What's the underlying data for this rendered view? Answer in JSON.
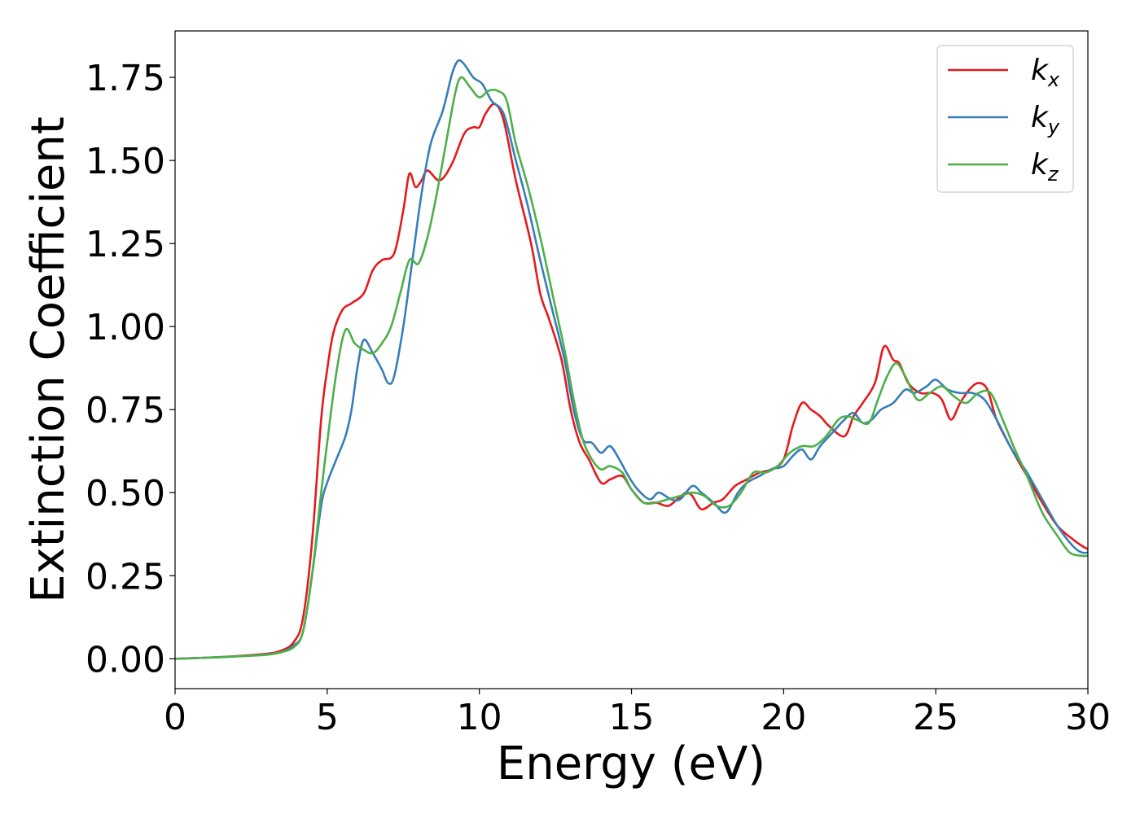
{
  "chart_data": {
    "type": "line",
    "xlabel": "Energy (eV)",
    "ylabel": "Extinction Coefficient",
    "xlim": [
      0,
      30
    ],
    "ylim": [
      -0.09,
      1.89
    ],
    "xticks": [
      0,
      5,
      10,
      15,
      20,
      25,
      30
    ],
    "xtick_labels": [
      "0",
      "5",
      "10",
      "15",
      "20",
      "25",
      "30"
    ],
    "yticks": [
      0.0,
      0.25,
      0.5,
      0.75,
      1.0,
      1.25,
      1.5,
      1.75
    ],
    "ytick_labels": [
      "0.00",
      "0.25",
      "0.50",
      "0.75",
      "1.00",
      "1.25",
      "1.50",
      "1.75"
    ],
    "grid": false,
    "legend_position": "top-right",
    "series": [
      {
        "name": "k_x",
        "label_main": "k",
        "label_sub": "x",
        "color": "#e41a1c",
        "points": [
          [
            0,
            0
          ],
          [
            1,
            0.003
          ],
          [
            2,
            0.008
          ],
          [
            3,
            0.015
          ],
          [
            3.5,
            0.025
          ],
          [
            3.9,
            0.05
          ],
          [
            4.2,
            0.12
          ],
          [
            4.5,
            0.35
          ],
          [
            4.8,
            0.72
          ],
          [
            5.0,
            0.87
          ],
          [
            5.2,
            0.98
          ],
          [
            5.5,
            1.05
          ],
          [
            5.8,
            1.07
          ],
          [
            6.2,
            1.1
          ],
          [
            6.5,
            1.17
          ],
          [
            6.8,
            1.2
          ],
          [
            7.2,
            1.22
          ],
          [
            7.5,
            1.35
          ],
          [
            7.7,
            1.46
          ],
          [
            7.9,
            1.42
          ],
          [
            8.1,
            1.44
          ],
          [
            8.3,
            1.47
          ],
          [
            8.7,
            1.44
          ],
          [
            9.1,
            1.49
          ],
          [
            9.5,
            1.58
          ],
          [
            9.8,
            1.6
          ],
          [
            10.0,
            1.6
          ],
          [
            10.2,
            1.64
          ],
          [
            10.5,
            1.67
          ],
          [
            10.8,
            1.62
          ],
          [
            11.2,
            1.44
          ],
          [
            11.7,
            1.25
          ],
          [
            12.0,
            1.1
          ],
          [
            12.3,
            1.02
          ],
          [
            12.7,
            0.9
          ],
          [
            13.0,
            0.75
          ],
          [
            13.3,
            0.65
          ],
          [
            13.6,
            0.6
          ],
          [
            14.0,
            0.53
          ],
          [
            14.3,
            0.54
          ],
          [
            14.7,
            0.55
          ],
          [
            15.0,
            0.51
          ],
          [
            15.4,
            0.47
          ],
          [
            15.8,
            0.47
          ],
          [
            16.2,
            0.46
          ],
          [
            16.5,
            0.48
          ],
          [
            16.8,
            0.5
          ],
          [
            17.0,
            0.49
          ],
          [
            17.3,
            0.45
          ],
          [
            17.7,
            0.47
          ],
          [
            18.0,
            0.48
          ],
          [
            18.4,
            0.52
          ],
          [
            18.8,
            0.54
          ],
          [
            19.2,
            0.56
          ],
          [
            19.6,
            0.57
          ],
          [
            20.0,
            0.6
          ],
          [
            20.3,
            0.7
          ],
          [
            20.6,
            0.77
          ],
          [
            20.9,
            0.75
          ],
          [
            21.2,
            0.73
          ],
          [
            21.5,
            0.7
          ],
          [
            22.0,
            0.67
          ],
          [
            22.3,
            0.73
          ],
          [
            22.6,
            0.77
          ],
          [
            23.0,
            0.83
          ],
          [
            23.3,
            0.94
          ],
          [
            23.6,
            0.9
          ],
          [
            23.8,
            0.89
          ],
          [
            24.1,
            0.83
          ],
          [
            24.5,
            0.8
          ],
          [
            24.9,
            0.8
          ],
          [
            25.2,
            0.78
          ],
          [
            25.5,
            0.72
          ],
          [
            25.8,
            0.77
          ],
          [
            26.1,
            0.81
          ],
          [
            26.4,
            0.83
          ],
          [
            26.7,
            0.81
          ],
          [
            27.0,
            0.72
          ],
          [
            27.5,
            0.63
          ],
          [
            28.0,
            0.55
          ],
          [
            28.5,
            0.47
          ],
          [
            29.0,
            0.4
          ],
          [
            29.5,
            0.36
          ],
          [
            29.8,
            0.34
          ],
          [
            30.0,
            0.33
          ]
        ]
      },
      {
        "name": "k_y",
        "label_main": "k",
        "label_sub": "y",
        "color": "#377eb8",
        "points": [
          [
            0,
            0
          ],
          [
            1,
            0.003
          ],
          [
            2,
            0.007
          ],
          [
            3,
            0.013
          ],
          [
            3.5,
            0.02
          ],
          [
            3.9,
            0.04
          ],
          [
            4.2,
            0.08
          ],
          [
            4.5,
            0.25
          ],
          [
            4.8,
            0.46
          ],
          [
            5.0,
            0.53
          ],
          [
            5.3,
            0.6
          ],
          [
            5.6,
            0.67
          ],
          [
            5.8,
            0.75
          ],
          [
            6.0,
            0.88
          ],
          [
            6.2,
            0.96
          ],
          [
            6.5,
            0.92
          ],
          [
            6.8,
            0.87
          ],
          [
            7.0,
            0.83
          ],
          [
            7.2,
            0.85
          ],
          [
            7.5,
            1.0
          ],
          [
            7.8,
            1.2
          ],
          [
            8.1,
            1.4
          ],
          [
            8.4,
            1.55
          ],
          [
            8.8,
            1.65
          ],
          [
            9.1,
            1.76
          ],
          [
            9.3,
            1.8
          ],
          [
            9.5,
            1.79
          ],
          [
            9.8,
            1.75
          ],
          [
            10.1,
            1.73
          ],
          [
            10.4,
            1.68
          ],
          [
            10.8,
            1.64
          ],
          [
            11.2,
            1.5
          ],
          [
            11.6,
            1.36
          ],
          [
            12.0,
            1.2
          ],
          [
            12.4,
            1.05
          ],
          [
            12.8,
            0.9
          ],
          [
            13.1,
            0.75
          ],
          [
            13.4,
            0.66
          ],
          [
            13.7,
            0.65
          ],
          [
            14.0,
            0.62
          ],
          [
            14.3,
            0.64
          ],
          [
            14.6,
            0.6
          ],
          [
            14.9,
            0.55
          ],
          [
            15.2,
            0.51
          ],
          [
            15.6,
            0.48
          ],
          [
            15.9,
            0.5
          ],
          [
            16.3,
            0.48
          ],
          [
            16.6,
            0.48
          ],
          [
            17.0,
            0.52
          ],
          [
            17.3,
            0.5
          ],
          [
            17.7,
            0.47
          ],
          [
            18.1,
            0.44
          ],
          [
            18.5,
            0.5
          ],
          [
            18.8,
            0.53
          ],
          [
            19.2,
            0.55
          ],
          [
            19.6,
            0.57
          ],
          [
            20.0,
            0.58
          ],
          [
            20.3,
            0.61
          ],
          [
            20.6,
            0.63
          ],
          [
            20.9,
            0.6
          ],
          [
            21.2,
            0.64
          ],
          [
            21.6,
            0.68
          ],
          [
            22.0,
            0.72
          ],
          [
            22.3,
            0.74
          ],
          [
            22.6,
            0.71
          ],
          [
            22.9,
            0.72
          ],
          [
            23.2,
            0.75
          ],
          [
            23.6,
            0.77
          ],
          [
            24.0,
            0.81
          ],
          [
            24.3,
            0.8
          ],
          [
            24.7,
            0.82
          ],
          [
            25.0,
            0.84
          ],
          [
            25.4,
            0.81
          ],
          [
            25.8,
            0.8
          ],
          [
            26.2,
            0.8
          ],
          [
            26.6,
            0.78
          ],
          [
            27.0,
            0.72
          ],
          [
            27.5,
            0.63
          ],
          [
            28.0,
            0.56
          ],
          [
            28.5,
            0.48
          ],
          [
            29.0,
            0.4
          ],
          [
            29.5,
            0.34
          ],
          [
            29.8,
            0.32
          ],
          [
            30.0,
            0.32
          ]
        ]
      },
      {
        "name": "k_z",
        "label_main": "k",
        "label_sub": "z",
        "color": "#4daf4a",
        "points": [
          [
            0,
            0
          ],
          [
            1,
            0.003
          ],
          [
            2,
            0.007
          ],
          [
            3,
            0.012
          ],
          [
            3.5,
            0.02
          ],
          [
            3.9,
            0.035
          ],
          [
            4.2,
            0.08
          ],
          [
            4.5,
            0.25
          ],
          [
            4.8,
            0.5
          ],
          [
            5.0,
            0.65
          ],
          [
            5.3,
            0.86
          ],
          [
            5.6,
            0.99
          ],
          [
            5.9,
            0.95
          ],
          [
            6.2,
            0.93
          ],
          [
            6.5,
            0.92
          ],
          [
            6.8,
            0.95
          ],
          [
            7.1,
            1.0
          ],
          [
            7.4,
            1.1
          ],
          [
            7.7,
            1.2
          ],
          [
            8.0,
            1.19
          ],
          [
            8.3,
            1.27
          ],
          [
            8.6,
            1.4
          ],
          [
            8.9,
            1.55
          ],
          [
            9.2,
            1.7
          ],
          [
            9.4,
            1.75
          ],
          [
            9.7,
            1.72
          ],
          [
            10.0,
            1.69
          ],
          [
            10.3,
            1.71
          ],
          [
            10.6,
            1.71
          ],
          [
            10.9,
            1.68
          ],
          [
            11.2,
            1.55
          ],
          [
            11.6,
            1.42
          ],
          [
            12.0,
            1.27
          ],
          [
            12.4,
            1.1
          ],
          [
            12.8,
            0.93
          ],
          [
            13.1,
            0.78
          ],
          [
            13.4,
            0.66
          ],
          [
            13.7,
            0.6
          ],
          [
            14.0,
            0.57
          ],
          [
            14.3,
            0.58
          ],
          [
            14.7,
            0.56
          ],
          [
            15.0,
            0.51
          ],
          [
            15.4,
            0.47
          ],
          [
            15.8,
            0.47
          ],
          [
            16.2,
            0.48
          ],
          [
            16.6,
            0.49
          ],
          [
            17.0,
            0.5
          ],
          [
            17.4,
            0.49
          ],
          [
            17.8,
            0.46
          ],
          [
            18.2,
            0.46
          ],
          [
            18.6,
            0.5
          ],
          [
            19.0,
            0.56
          ],
          [
            19.4,
            0.56
          ],
          [
            19.8,
            0.58
          ],
          [
            20.2,
            0.62
          ],
          [
            20.6,
            0.64
          ],
          [
            21.0,
            0.64
          ],
          [
            21.4,
            0.67
          ],
          [
            21.8,
            0.72
          ],
          [
            22.1,
            0.73
          ],
          [
            22.4,
            0.72
          ],
          [
            22.8,
            0.71
          ],
          [
            23.1,
            0.78
          ],
          [
            23.4,
            0.85
          ],
          [
            23.7,
            0.89
          ],
          [
            24.0,
            0.85
          ],
          [
            24.4,
            0.78
          ],
          [
            24.8,
            0.8
          ],
          [
            25.2,
            0.82
          ],
          [
            25.6,
            0.79
          ],
          [
            26.0,
            0.77
          ],
          [
            26.4,
            0.8
          ],
          [
            26.8,
            0.8
          ],
          [
            27.2,
            0.72
          ],
          [
            27.6,
            0.63
          ],
          [
            28.0,
            0.55
          ],
          [
            28.5,
            0.44
          ],
          [
            29.0,
            0.37
          ],
          [
            29.4,
            0.32
          ],
          [
            29.8,
            0.31
          ],
          [
            30.0,
            0.31
          ]
        ]
      }
    ]
  }
}
